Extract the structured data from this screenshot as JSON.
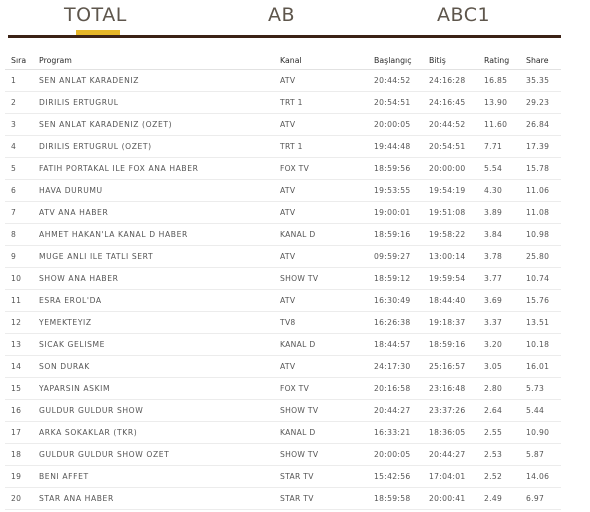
{
  "tabs": [
    {
      "label": "TOTAL",
      "active": true
    },
    {
      "label": "AB",
      "active": false
    },
    {
      "label": "ABC1",
      "active": false
    }
  ],
  "accent_color": "#e6b628",
  "rule_color": "#3b2216",
  "table": {
    "headers": [
      "Sıra",
      "Program",
      "Kanal",
      "Başlangıç",
      "Bitiş",
      "Rating",
      "Share"
    ],
    "rows": [
      [
        "1",
        "SEN ANLAT KARADENIZ",
        "ATV",
        "20:44:52",
        "24:16:28",
        "16.85",
        "35.35"
      ],
      [
        "2",
        "DIRILIS ERTUGRUL",
        "TRT 1",
        "20:54:51",
        "24:16:45",
        "13.90",
        "29.23"
      ],
      [
        "3",
        "SEN ANLAT KARADENIZ (OZET)",
        "ATV",
        "20:00:05",
        "20:44:52",
        "11.60",
        "26.84"
      ],
      [
        "4",
        "DIRILIS ERTUGRUL (OZET)",
        "TRT 1",
        "19:44:48",
        "20:54:51",
        "7.71",
        "17.39"
      ],
      [
        "5",
        "FATIH PORTAKAL ILE FOX ANA HABER",
        "FOX TV",
        "18:59:56",
        "20:00:00",
        "5.54",
        "15.78"
      ],
      [
        "6",
        "HAVA DURUMU",
        "ATV",
        "19:53:55",
        "19:54:19",
        "4.30",
        "11.06"
      ],
      [
        "7",
        "ATV ANA HABER",
        "ATV",
        "19:00:01",
        "19:51:08",
        "3.89",
        "11.08"
      ],
      [
        "8",
        "AHMET HAKAN'LA KANAL D HABER",
        "KANAL D",
        "18:59:16",
        "19:58:22",
        "3.84",
        "10.98"
      ],
      [
        "9",
        "MUGE ANLI ILE TATLI SERT",
        "ATV",
        "09:59:27",
        "13:00:14",
        "3.78",
        "25.80"
      ],
      [
        "10",
        "SHOW ANA HABER",
        "SHOW TV",
        "18:59:12",
        "19:59:54",
        "3.77",
        "10.74"
      ],
      [
        "11",
        "ESRA EROL'DA",
        "ATV",
        "16:30:49",
        "18:44:40",
        "3.69",
        "15.76"
      ],
      [
        "12",
        "YEMEKTEYIZ",
        "TV8",
        "16:26:38",
        "19:18:37",
        "3.37",
        "13.51"
      ],
      [
        "13",
        "SICAK GELISME",
        "KANAL D",
        "18:44:57",
        "18:59:16",
        "3.20",
        "10.18"
      ],
      [
        "14",
        "SON DURAK",
        "ATV",
        "24:17:30",
        "25:16:57",
        "3.05",
        "16.01"
      ],
      [
        "15",
        "YAPARSIN ASKIM",
        "FOX TV",
        "20:16:58",
        "23:16:48",
        "2.80",
        "5.73"
      ],
      [
        "16",
        "GULDUR GULDUR SHOW",
        "SHOW TV",
        "20:44:27",
        "23:37:26",
        "2.64",
        "5.44"
      ],
      [
        "17",
        "ARKA SOKAKLAR (TKR)",
        "KANAL D",
        "16:33:21",
        "18:36:05",
        "2.55",
        "10.90"
      ],
      [
        "18",
        "GULDUR GULDUR SHOW OZET",
        "SHOW TV",
        "20:00:05",
        "20:44:27",
        "2.53",
        "5.87"
      ],
      [
        "19",
        "BENI AFFET",
        "STAR TV",
        "15:42:56",
        "17:04:01",
        "2.52",
        "14.06"
      ],
      [
        "20",
        "STAR ANA HABER",
        "STAR TV",
        "18:59:58",
        "20:00:41",
        "2.49",
        "6.97"
      ]
    ]
  }
}
